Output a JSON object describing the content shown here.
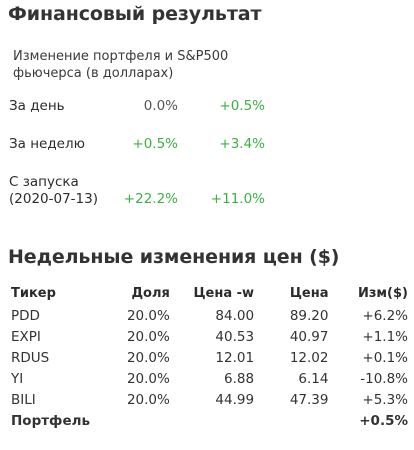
{
  "financial": {
    "title": "Финансовый результат",
    "subtitle": "Изменение портфеля и S&P500 фьючерса (в долларах)",
    "rows": [
      {
        "label": "За день",
        "portfolio": "0.0%",
        "sp500": "+0.5%"
      },
      {
        "label": "За неделю",
        "portfolio": "+0.5%",
        "sp500": "+3.4%"
      },
      {
        "label_line1": "С запуска",
        "label_line2": "(2020-07-13)",
        "portfolio": "+22.2%",
        "sp500": "+11.0%"
      }
    ]
  },
  "weekly": {
    "title": "Недельные изменения цен ($)",
    "headers": {
      "ticker": "Тикер",
      "share": "Доля",
      "price_w": "Цена -w",
      "price": "Цена",
      "change": "Изм($)"
    },
    "rows": [
      {
        "ticker": "PDD",
        "share": "20.0%",
        "price_w": "84.00",
        "price": "89.20",
        "change": "+6.2%"
      },
      {
        "ticker": "EXPI",
        "share": "20.0%",
        "price_w": "40.53",
        "price": "40.97",
        "change": "+1.1%"
      },
      {
        "ticker": "RDUS",
        "share": "20.0%",
        "price_w": "12.01",
        "price": "12.02",
        "change": "+0.1%"
      },
      {
        "ticker": "YI",
        "share": "20.0%",
        "price_w": "6.88",
        "price": "6.14",
        "change": "-10.8%"
      },
      {
        "ticker": "BILI",
        "share": "20.0%",
        "price_w": "44.99",
        "price": "47.39",
        "change": "+5.3%"
      }
    ],
    "total": {
      "label": "Портфель",
      "change": "+0.5%"
    }
  },
  "colors": {
    "positive": "#3cb043",
    "negative": "#e53935",
    "neutral": "#555555"
  }
}
